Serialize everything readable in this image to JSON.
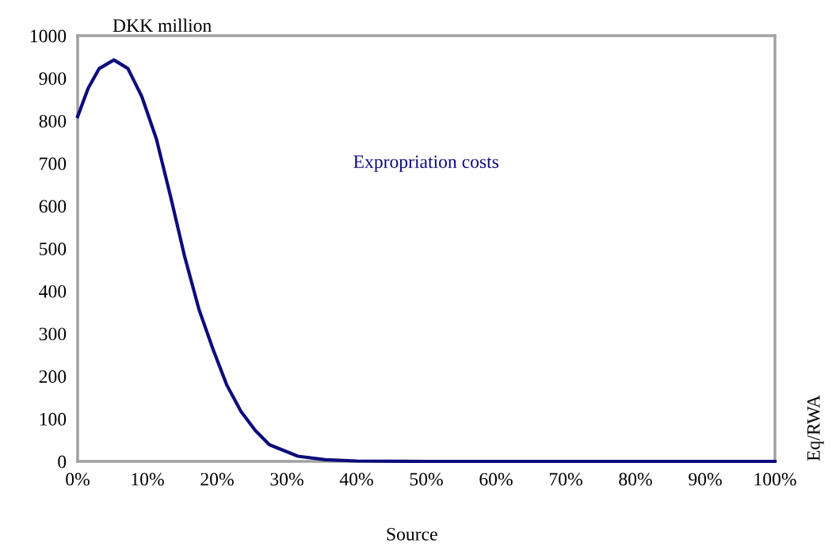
{
  "chart_data": {
    "type": "line",
    "ylabel": "DKK million",
    "annotations": [
      "Eq/RWA",
      "Source"
    ],
    "x": [
      0,
      1.5,
      3.1,
      5.2,
      7.2,
      9.2,
      11.3,
      13.3,
      15.3,
      17.4,
      19.4,
      21.4,
      23.4,
      25.5,
      27.5,
      31.6,
      35.5,
      40,
      50,
      60,
      70,
      80,
      90,
      100
    ],
    "series": [
      {
        "name": "Expropriation costs",
        "color": "#0c0c7c",
        "values": [
          810,
          876,
          923,
          943,
          923,
          857,
          757,
          624,
          484,
          357,
          264,
          179,
          118,
          72,
          39,
          12,
          4,
          1,
          0,
          0,
          0,
          0,
          0,
          0
        ]
      }
    ],
    "xlim": [
      0,
      100
    ],
    "xticks": [
      {
        "value": 0,
        "label": "0%"
      },
      {
        "value": 10,
        "label": "10%"
      },
      {
        "value": 20,
        "label": "20%"
      },
      {
        "value": 30,
        "label": "30%"
      },
      {
        "value": 40,
        "label": "40%"
      },
      {
        "value": 50,
        "label": "50%"
      },
      {
        "value": 60,
        "label": "60%"
      },
      {
        "value": 70,
        "label": "70%"
      },
      {
        "value": 80,
        "label": "80%"
      },
      {
        "value": 90,
        "label": "90%"
      },
      {
        "value": 100,
        "label": "100%"
      }
    ],
    "ylim": [
      0,
      1000
    ],
    "yticks": [
      0,
      100,
      200,
      300,
      400,
      500,
      600,
      700,
      800,
      900,
      1000
    ],
    "grid": false,
    "legend": false,
    "marker": "none",
    "line_style": "solid"
  }
}
